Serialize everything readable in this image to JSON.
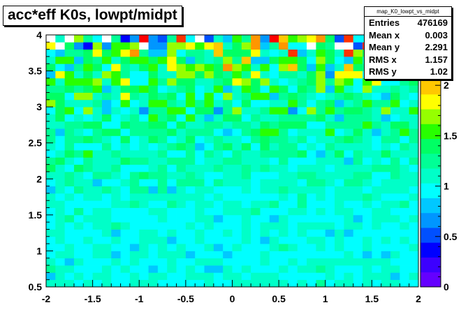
{
  "chart_data": {
    "type": "heatmap",
    "title": "acc*eff K0s, lowpt/midpt",
    "stats": {
      "name": "map_K0_lowpt_vs_midpt",
      "rows": [
        {
          "label": "Entries",
          "value": "476169"
        },
        {
          "label": "Mean x",
          "value": "0.003"
        },
        {
          "label": "Mean y",
          "value": "2.291"
        },
        {
          "label": "RMS x",
          "value": "1.157"
        },
        {
          "label": "RMS y",
          "value": "1.02"
        }
      ]
    },
    "xlim": [
      -2,
      2
    ],
    "ylim": [
      0.5,
      4
    ],
    "zlim": [
      0,
      2.5
    ],
    "x_bins": 40,
    "y_bins": 35,
    "x_ticks": [
      "-2",
      "-1.5",
      "-1",
      "-0.5",
      "0",
      "0.5",
      "1",
      "1.5",
      "2"
    ],
    "y_ticks": [
      "0.5",
      "1",
      "1.5",
      "2",
      "2.5",
      "3",
      "3.5",
      "4"
    ],
    "z_ticks": [
      "0",
      "0.5",
      "1",
      "1.5",
      "2"
    ],
    "z_profile": [
      {
        "y": 0.55,
        "mean": 1.03,
        "spread": 0.12
      },
      {
        "y": 1.0,
        "mean": 1.0,
        "spread": 0.1
      },
      {
        "y": 1.5,
        "mean": 1.02,
        "spread": 0.12
      },
      {
        "y": 2.0,
        "mean": 1.08,
        "spread": 0.16
      },
      {
        "y": 2.5,
        "mean": 1.15,
        "spread": 0.22
      },
      {
        "y": 3.0,
        "mean": 1.25,
        "spread": 0.32
      },
      {
        "y": 3.5,
        "mean": 1.35,
        "spread": 0.5
      },
      {
        "y": 4.0,
        "mean": 1.4,
        "spread": 0.85
      }
    ],
    "palette": [
      "#6400ff",
      "#3c00ff",
      "#0000ff",
      "#0050ff",
      "#0096ff",
      "#00c8ff",
      "#00ffff",
      "#00ffc8",
      "#00ff96",
      "#00ff64",
      "#28ff00",
      "#96ff00",
      "#ffff00",
      "#ffc800",
      "#ff9600",
      "#ff3200",
      "#ff0000"
    ],
    "grid": false
  }
}
